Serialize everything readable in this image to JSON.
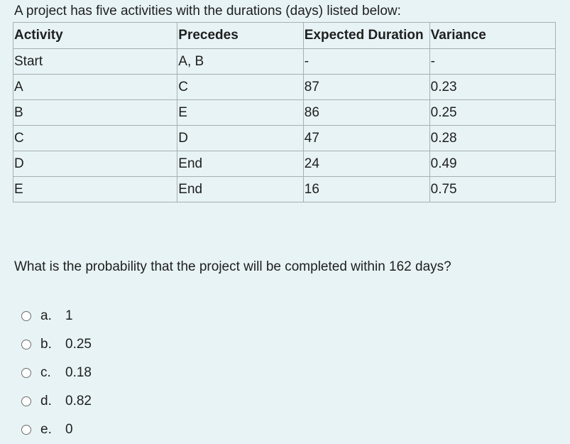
{
  "question": {
    "intro": "A project has five activities with the durations (days) listed below:",
    "prompt": "What is the probability that the project will be completed within 162 days?"
  },
  "table": {
    "headers": [
      "Activity",
      "Precedes",
      "Expected Duration",
      "Variance"
    ],
    "rows": [
      [
        "Start",
        "A, B",
        "-",
        "-"
      ],
      [
        "A",
        "C",
        "87",
        "0.23"
      ],
      [
        "B",
        "E",
        "86",
        "0.25"
      ],
      [
        "C",
        "D",
        "47",
        "0.28"
      ],
      [
        "D",
        "End",
        "24",
        "0.49"
      ],
      [
        "E",
        "End",
        "16",
        "0.75"
      ]
    ]
  },
  "options": [
    {
      "letter": "a.",
      "text": "1"
    },
    {
      "letter": "b.",
      "text": "0.25"
    },
    {
      "letter": "c.",
      "text": "0.18"
    },
    {
      "letter": "d.",
      "text": "0.82"
    },
    {
      "letter": "e.",
      "text": "0"
    }
  ]
}
